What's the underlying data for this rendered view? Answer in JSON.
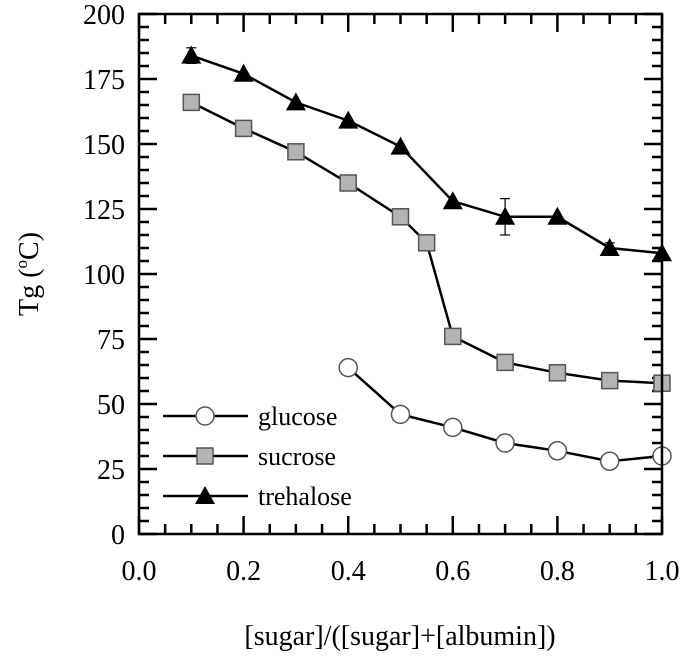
{
  "chart_data": {
    "type": "line",
    "title": "",
    "xlabel": "[sugar]/([sugar]+[albumin])",
    "ylabel_main": "Tg (",
    "ylabel_sup": "o",
    "ylabel_unit": "C)",
    "xlim": [
      0.0,
      1.0
    ],
    "ylim": [
      0,
      200
    ],
    "xticks": [
      "0.0",
      "0.2",
      "0.4",
      "0.6",
      "0.8",
      "1.0"
    ],
    "yticks": [
      "0",
      "25",
      "50",
      "75",
      "100",
      "125",
      "150",
      "175",
      "200"
    ],
    "grid": false,
    "legend_position": "bottom-left",
    "series": [
      {
        "name": "glucose",
        "marker": "circle-open",
        "color": "#ffffff",
        "x": [
          0.4,
          0.5,
          0.6,
          0.7,
          0.8,
          0.9,
          1.0
        ],
        "y": [
          64,
          46,
          41,
          35,
          32,
          28,
          30
        ],
        "err": [
          0,
          0,
          2,
          0,
          0,
          0,
          0
        ]
      },
      {
        "name": "sucrose",
        "marker": "square",
        "color": "#b4b4b4",
        "x": [
          0.1,
          0.2,
          0.3,
          0.4,
          0.5,
          0.55,
          0.6,
          0.7,
          0.8,
          0.9,
          1.0
        ],
        "y": [
          166,
          156,
          147,
          135,
          122,
          112,
          76,
          66,
          62,
          59,
          58
        ],
        "err": [
          0,
          0,
          0,
          0,
          3,
          0,
          2,
          2,
          0,
          0,
          0
        ]
      },
      {
        "name": "trehalose",
        "marker": "triangle",
        "color": "#000000",
        "x": [
          0.1,
          0.2,
          0.3,
          0.4,
          0.5,
          0.6,
          0.7,
          0.8,
          0.9,
          1.0
        ],
        "y": [
          184,
          177,
          166,
          159,
          149,
          128,
          122,
          122,
          110,
          108
        ],
        "err": [
          3,
          0,
          0,
          0,
          0,
          0,
          7,
          0,
          2,
          0
        ]
      }
    ]
  }
}
